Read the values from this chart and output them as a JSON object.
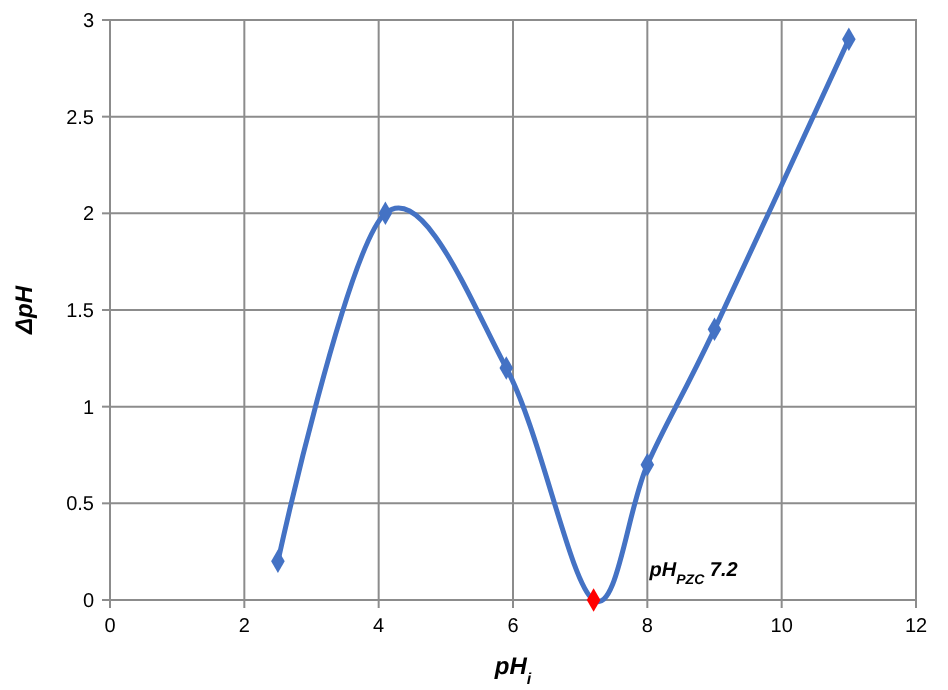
{
  "chart_data": {
    "type": "line",
    "xlabel": "pH$_{i}$",
    "ylabel": "ΔpH",
    "x": [
      2.5,
      4.1,
      5.9,
      7.2,
      8.0,
      9.0,
      11.0
    ],
    "series": [
      {
        "color": "#4472c4",
        "colors": [
          "#4472c4",
          "#4472c4",
          "#4472c4",
          "#ff0000",
          "#4472c4",
          "#4472c4",
          "#4472c4"
        ],
        "values": [
          0.2,
          2.0,
          1.2,
          0.0,
          0.7,
          1.4,
          2.9
        ]
      }
    ],
    "xlim": [
      0,
      12
    ],
    "xticks": [
      0,
      2,
      4,
      6,
      8,
      10,
      12
    ],
    "ylim": [
      0,
      3
    ],
    "yticks": [
      0,
      0.5,
      1,
      1.5,
      2,
      2.5,
      3
    ],
    "grid": true,
    "marker": "diamond",
    "line_style": "solid",
    "annotations": [
      {
        "text": "pH$_{PZC}$ 7.2",
        "x": 7.2,
        "y": 0
      }
    ]
  }
}
